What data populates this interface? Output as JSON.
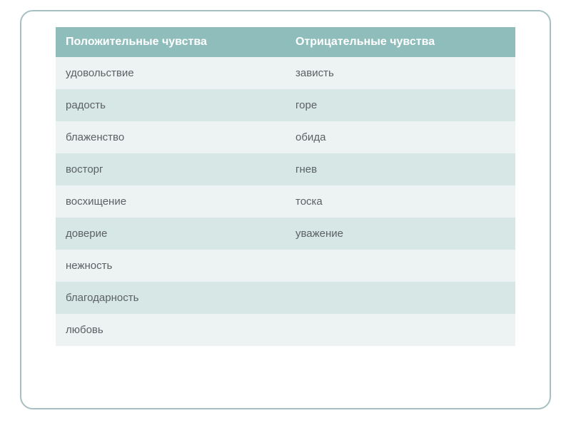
{
  "table": {
    "type": "table",
    "header_bg": "#8fbdbc",
    "header_text_color": "#ffffff",
    "cell_text_color": "#5b6164",
    "row_even_bg": "#edf3f3",
    "row_odd_bg": "#d7e7e6",
    "border_color": "#a6bfc0",
    "header_fontsize": 16,
    "cell_fontsize": 15,
    "columns": [
      "Положительные чувства",
      "Отрицательные чувства"
    ],
    "rows": [
      [
        "удовольствие",
        "зависть"
      ],
      [
        "радость",
        "горе"
      ],
      [
        "блаженство",
        "обида"
      ],
      [
        "восторг",
        "гнев"
      ],
      [
        "восхищение",
        "тоска"
      ],
      [
        "доверие",
        "уважение"
      ],
      [
        "нежность",
        ""
      ],
      [
        "благодарность",
        ""
      ],
      [
        "любовь",
        ""
      ]
    ]
  }
}
